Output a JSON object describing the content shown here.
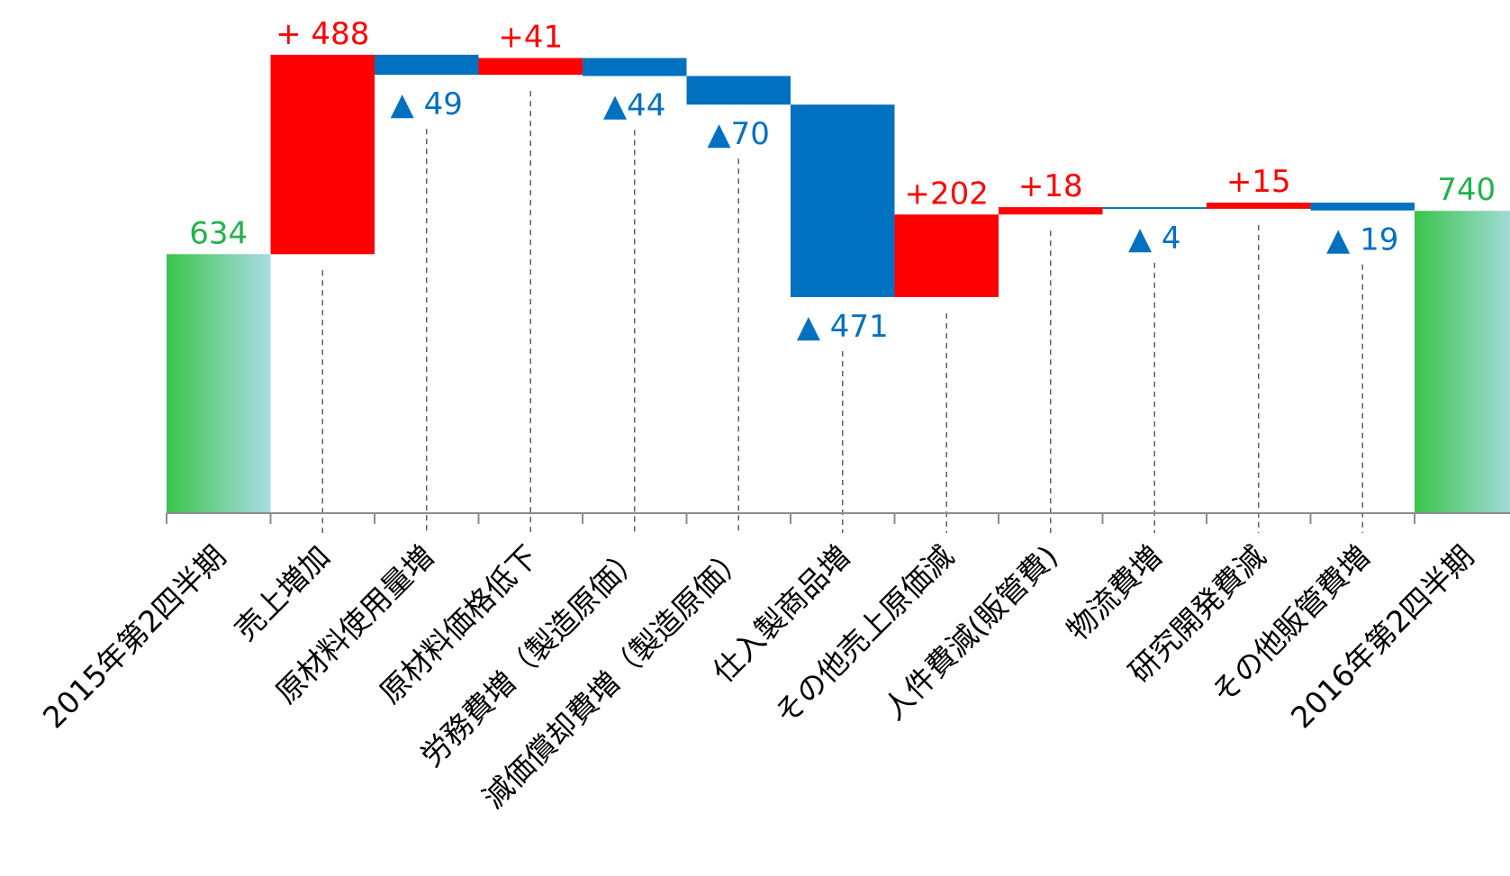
{
  "chart_data": {
    "type": "bar",
    "subtype": "waterfall",
    "title": "",
    "xlabel": "",
    "ylabel": "",
    "ylim": [
      0,
      980
    ],
    "grid": false,
    "legend": "none",
    "colors": {
      "total_start": "#3cc44a",
      "total_end": "#a9dde3",
      "increase": "#ff0000",
      "decrease": "#0070c0",
      "total_label": "#22b14c"
    },
    "categories": [
      "2015年第2四半期",
      "売上増加",
      "原材料使用量増",
      "原材料価格低下",
      "労務費増（製造原価）",
      "減価償却費増（製造原価）",
      "仕入製商品増",
      "その他売上原価減",
      "人件費減(販管費)",
      "物流費増",
      "研究開発費減",
      "その他販管費増",
      "2016年第2四半期"
    ],
    "values": [
      634,
      488,
      -49,
      41,
      -44,
      -70,
      -471,
      202,
      18,
      -4,
      15,
      -19,
      740
    ],
    "kinds": [
      "total",
      "increase",
      "decrease",
      "increase",
      "decrease",
      "decrease",
      "decrease",
      "increase",
      "increase",
      "decrease",
      "increase",
      "decrease",
      "total"
    ],
    "data_labels": [
      "634",
      "+ 488",
      "▲ 49",
      "+41",
      "▲44",
      "▲70",
      "▲ 471",
      "+202",
      "+18",
      "▲ 4",
      "+15",
      "▲ 19",
      "740"
    ]
  }
}
